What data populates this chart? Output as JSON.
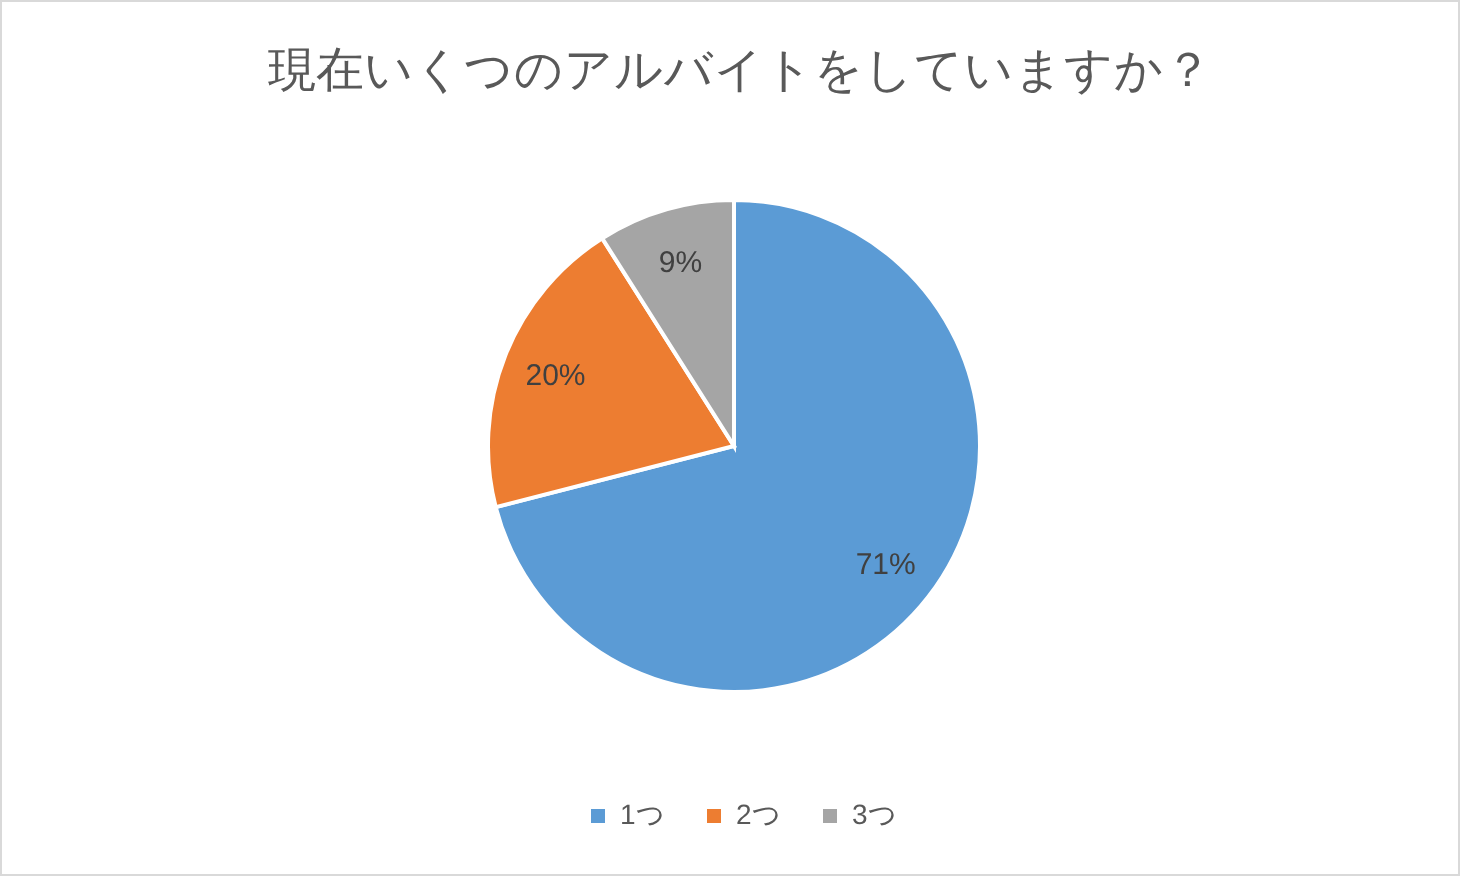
{
  "chart_data": {
    "type": "pie",
    "title": "現在いくつのアルバイトをしていますか？",
    "categories": [
      "1つ",
      "2つ",
      "3つ"
    ],
    "values": [
      71,
      20,
      9
    ],
    "colors": [
      "#5b9bd5",
      "#ed7d31",
      "#a5a5a5"
    ],
    "value_labels": [
      "71%",
      "20%",
      "9%"
    ],
    "legend": "bottom"
  }
}
